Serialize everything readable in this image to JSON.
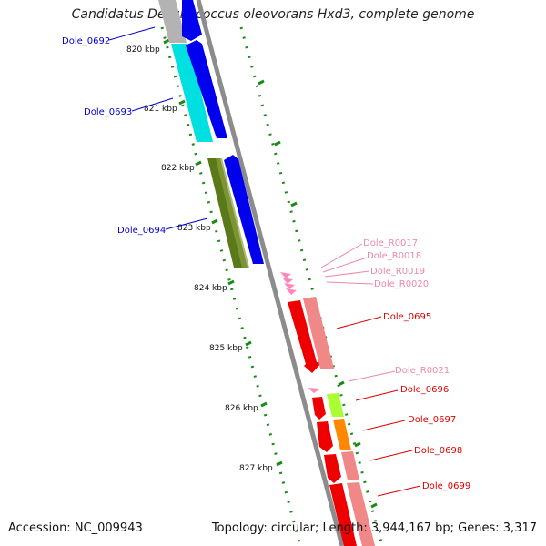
{
  "title": "Candidatus Desulfococcus oleovorans Hxd3, complete genome",
  "footer": {
    "accession": "Accession: NC_009943",
    "summary": "Topology: circular; Length: 3,944,167 bp; Genes: 3,317"
  },
  "colors": {
    "backbone": "#8c8c8c",
    "tick": "#1a8a1a",
    "forward_cds": "#0000ee",
    "label_blue": "#0000cc",
    "label_red": "#dd0000",
    "label_pink": "#ee88aa"
  },
  "ruler": [
    "820 kbp",
    "821 kbp",
    "822 kbp",
    "823 kbp",
    "824 kbp",
    "825 kbp",
    "826 kbp",
    "827 kbp"
  ],
  "gene_labels": {
    "blue": [
      "Dole_0692",
      "Dole_0693",
      "Dole_0694"
    ],
    "pink_top": [
      "Dole_R0017",
      "Dole_R0018",
      "Dole_R0019",
      "Dole_R0020"
    ],
    "red": [
      "Dole_0695",
      "Dole_0696",
      "Dole_0697",
      "Dole_0698",
      "Dole_0699"
    ],
    "pink_mid": "Dole_R0021"
  }
}
